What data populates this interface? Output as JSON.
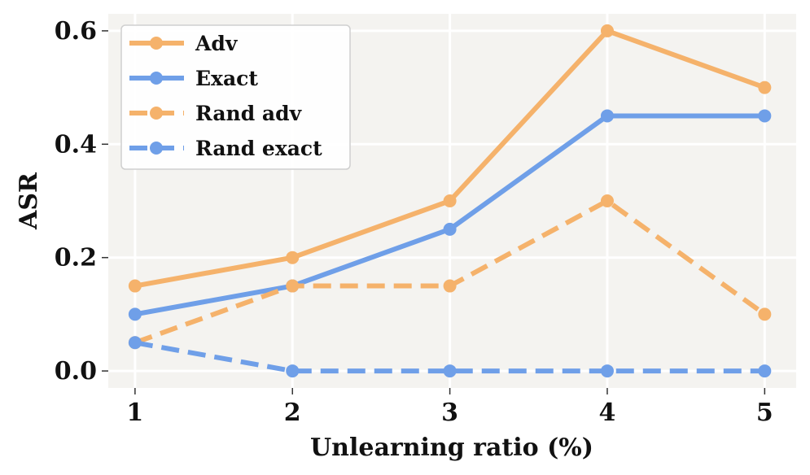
{
  "chart_data": {
    "type": "line",
    "title": "",
    "xlabel": "Unlearning ratio (%)",
    "ylabel": "ASR",
    "x": [
      1,
      2,
      3,
      4,
      5
    ],
    "x_tick_labels": [
      "1",
      "2",
      "3",
      "4",
      "5"
    ],
    "xlim": [
      0.83,
      5.2
    ],
    "ylim": [
      -0.03,
      0.63
    ],
    "y_ticks": [
      0.0,
      0.2,
      0.4,
      0.6
    ],
    "y_tick_labels": [
      "0.0",
      "0.2",
      "0.4",
      "0.6"
    ],
    "grid": true,
    "legend_position": "top-left",
    "series": [
      {
        "name": "Adv",
        "values": [
          0.15,
          0.2,
          0.3,
          0.6,
          0.5
        ],
        "color": "#F5B26B",
        "style": "solid"
      },
      {
        "name": "Exact",
        "values": [
          0.1,
          0.15,
          0.25,
          0.45,
          0.45
        ],
        "color": "#6F9FE8",
        "style": "solid"
      },
      {
        "name": "Rand adv",
        "values": [
          0.05,
          0.15,
          0.15,
          0.3,
          0.1
        ],
        "color": "#F5B26B",
        "style": "dashed"
      },
      {
        "name": "Rand exact",
        "values": [
          0.05,
          0.0,
          0.0,
          0.0,
          0.0
        ],
        "color": "#6F9FE8",
        "style": "dashed"
      }
    ]
  }
}
